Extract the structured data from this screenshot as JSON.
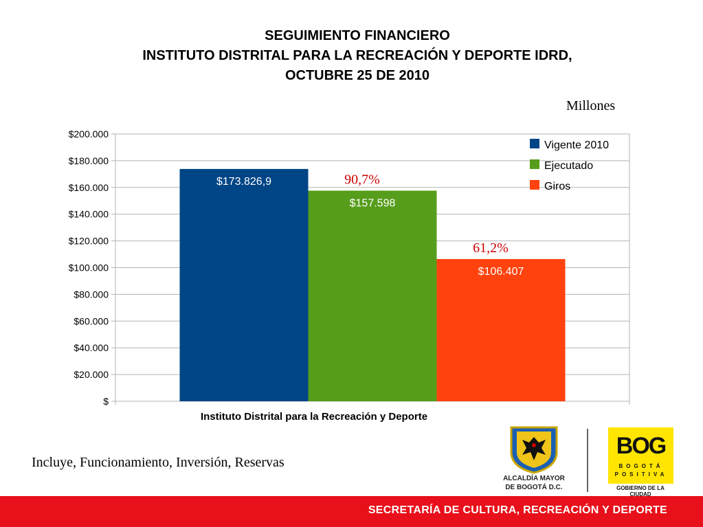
{
  "header": {
    "title_lines": [
      "SEGUIMIENTO FINANCIERO",
      "INSTITUTO DISTRITAL PARA LA RECREACIÓN Y DEPORTE IDRD,",
      "OCTUBRE 25 DE 2010"
    ],
    "unit_label": "Millones"
  },
  "chart_data": {
    "type": "bar",
    "title": "",
    "categories": [
      "Instituto Distrital para la Recreación y Deporte"
    ],
    "xlabel": "",
    "ylabel": "",
    "ylim": [
      0,
      200000
    ],
    "yticks": [
      0,
      20000,
      40000,
      60000,
      80000,
      100000,
      120000,
      140000,
      160000,
      180000,
      200000
    ],
    "ytick_labels": [
      "$",
      "$20.000",
      "$40.000",
      "$60.000",
      "$80.000",
      "$100.000",
      "$120.000",
      "$140.000",
      "$160.000",
      "$180.000",
      "$200.000"
    ],
    "grid": true,
    "legend_position": "top-right",
    "series": [
      {
        "name": "Vigente 2010",
        "values": [
          173826.9
        ],
        "data_label": "$173.826,9",
        "color": "#004586"
      },
      {
        "name": "Ejecutado",
        "values": [
          157598
        ],
        "data_label": "$157.598",
        "color": "#579d1c"
      },
      {
        "name": "Giros",
        "values": [
          106407
        ],
        "data_label": "$106.407",
        "color": "#ff420e"
      }
    ],
    "annotations": [
      {
        "text": "90,7%",
        "series": "Ejecutado",
        "color": "#cc0000"
      },
      {
        "text": "61,2%",
        "series": "Giros",
        "color": "#cc0000"
      }
    ]
  },
  "notes": {
    "includes": "Incluye, Funcionamiento, Inversión, Reservas"
  },
  "logos": {
    "alcaldia_line1": "ALCALDÍA MAYOR",
    "alcaldia_line2": "DE BOGOTÁ D.C.",
    "bog_word": "BOG",
    "bog_line1": "BOGOTÁ",
    "bog_line2": "POSITIVA",
    "bog_tag": "GOBIERNO DE LA CIUDAD"
  },
  "footer": {
    "text": "SECRETARÍA DE CULTURA, RECREACIÓN Y DEPORTE"
  }
}
